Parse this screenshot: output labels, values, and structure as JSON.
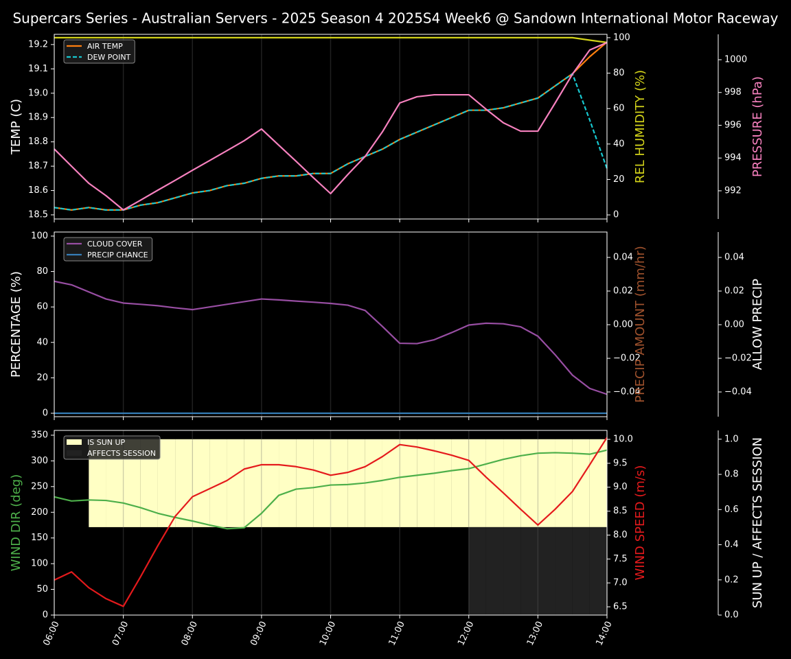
{
  "title": "Supercars Series - Australian Servers - 2025 Season 4 2025S4 Week6 @ Sandown International Motor Raceway",
  "chart_data": [
    {
      "type": "line",
      "legend": "upper left",
      "grid": true,
      "x": [
        "06:00",
        "06:15",
        "06:30",
        "06:45",
        "07:00",
        "07:15",
        "07:30",
        "07:45",
        "08:00",
        "08:15",
        "08:30",
        "08:45",
        "09:00",
        "09:15",
        "09:30",
        "09:45",
        "10:00",
        "10:15",
        "10:30",
        "10:45",
        "11:00",
        "11:15",
        "11:30",
        "11:45",
        "12:00",
        "12:15",
        "12:30",
        "12:45",
        "13:00",
        "13:15",
        "13:30",
        "13:45",
        "14:00"
      ],
      "xlim": [
        "06:00",
        "14:00"
      ],
      "xticks": [
        "06:00",
        "07:00",
        "08:00",
        "09:00",
        "10:00",
        "11:00",
        "12:00",
        "13:00",
        "14:00"
      ],
      "ylabel": "TEMP (C)",
      "ylabel_color": "#ffffff",
      "ylim": [
        18.483,
        19.242
      ],
      "yticks": [
        18.5,
        18.6,
        18.7,
        18.8,
        18.9,
        {
          "value": 19,
          "label": "19.0"
        },
        19.1,
        19.2
      ],
      "y2label": "REL HUMIDITY (%)",
      "y2label_color": "#d4d41a",
      "y2lim": [
        -2.3,
        101.9
      ],
      "y2ticks": [
        0,
        20,
        40,
        60,
        80,
        100
      ],
      "y3label": "PRESSURE (hPa)",
      "y3label_color": "#f781bf",
      "y3lim": [
        990.28,
        1001.55
      ],
      "y3ticks": [
        992,
        994,
        996,
        998,
        1000
      ],
      "series": [
        {
          "name": "AIR TEMP",
          "color": "#ff7f0e",
          "style": "line",
          "axis": "y",
          "legend": true,
          "values": [
            18.53,
            18.52,
            18.53,
            18.52,
            18.52,
            18.54,
            18.55,
            18.57,
            18.59,
            18.6,
            18.62,
            18.63,
            18.65,
            18.66,
            18.66,
            18.67,
            18.67,
            18.71,
            18.74,
            18.77,
            18.81,
            18.84,
            18.87,
            18.9,
            18.93,
            18.93,
            18.94,
            18.96,
            18.98,
            19.03,
            19.08,
            19.15,
            19.21
          ]
        },
        {
          "name": "DEW POINT",
          "color": "#17c8d0",
          "style": "dashed",
          "axis": "y",
          "legend": true,
          "values": [
            18.53,
            18.52,
            18.53,
            18.52,
            18.52,
            18.54,
            18.55,
            18.57,
            18.59,
            18.6,
            18.62,
            18.63,
            18.65,
            18.66,
            18.66,
            18.67,
            18.67,
            18.71,
            18.74,
            18.77,
            18.81,
            18.84,
            18.87,
            18.9,
            18.93,
            18.93,
            18.94,
            18.96,
            18.98,
            19.03,
            19.08,
            18.89,
            18.69
          ]
        },
        {
          "color": "#d4d41a",
          "style": "line",
          "axis": "y2",
          "legend": false,
          "values": [
            100,
            100,
            100,
            100,
            100,
            100,
            100,
            100,
            100,
            100,
            100,
            100,
            100,
            100,
            100,
            100,
            100,
            100,
            100,
            100,
            100,
            100,
            100,
            100,
            100,
            100,
            100,
            100,
            100,
            100,
            100,
            98.6,
            97.3
          ]
        },
        {
          "color": "#f781bf",
          "style": "line",
          "axis": "y3",
          "legend": false,
          "values": [
            994.55,
            993.5,
            992.46,
            991.7,
            990.83,
            991.43,
            992.04,
            992.64,
            993.25,
            993.85,
            994.45,
            995.06,
            995.77,
            994.78,
            993.8,
            992.8,
            991.83,
            993.0,
            994.1,
            995.6,
            997.36,
            997.74,
            997.86,
            997.86,
            997.86,
            996.98,
            996.15,
            995.64,
            995.64,
            997.36,
            999.12,
            1000.59,
            1001.05
          ]
        }
      ]
    },
    {
      "type": "line",
      "legend": "upper left",
      "grid": true,
      "x": [
        "06:00",
        "06:15",
        "06:30",
        "06:45",
        "07:00",
        "07:15",
        "07:30",
        "07:45",
        "08:00",
        "08:15",
        "08:30",
        "08:45",
        "09:00",
        "09:15",
        "09:30",
        "09:45",
        "10:00",
        "10:15",
        "10:30",
        "10:45",
        "11:00",
        "11:15",
        "11:30",
        "11:45",
        "12:00",
        "12:15",
        "12:30",
        "12:45",
        "13:00",
        "13:15",
        "13:30",
        "13:45",
        "14:00"
      ],
      "xlim": [
        "06:00",
        "14:00"
      ],
      "xticks": [
        "06:00",
        "07:00",
        "08:00",
        "09:00",
        "10:00",
        "11:00",
        "12:00",
        "13:00",
        "14:00"
      ],
      "ylabel": "PERCENTAGE (%)",
      "ylabel_color": "#ffffff",
      "ylim": [
        -1.94,
        102.3
      ],
      "yticks": [
        0,
        20,
        40,
        60,
        80,
        100
      ],
      "y2label": "PRECIP AMOUNT (mm/hr)",
      "y2label_color": "#a0522d",
      "y2lim": [
        -0.0547,
        0.0551
      ],
      "y2ticks": [
        {
          "value": -0.04,
          "label": "−0.04"
        },
        {
          "value": -0.02,
          "label": "−0.02"
        },
        {
          "value": 0,
          "label": "0.00"
        },
        0.02,
        0.04
      ],
      "y3label": "ALLOW PRECIP",
      "y3label_color": "#ffffff",
      "y3lim": [
        -0.0547,
        0.0551
      ],
      "y3ticks": [
        {
          "value": -0.04,
          "label": "−0.04"
        },
        {
          "value": -0.02,
          "label": "−0.02"
        },
        {
          "value": 0,
          "label": "0.00"
        },
        0.02,
        0.04
      ],
      "series": [
        {
          "name": "CLOUD COVER",
          "color": "#984ea3",
          "style": "line",
          "axis": "y",
          "legend": true,
          "values": [
            74.5,
            72.5,
            68.5,
            64.5,
            62.2,
            61.5,
            60.7,
            59.5,
            58.5,
            60,
            61.5,
            63,
            64.5,
            64,
            63.3,
            62.7,
            62,
            61,
            58,
            49,
            39.5,
            39.3,
            41.5,
            45.5,
            49.8,
            50.8,
            50.5,
            48.8,
            43.5,
            33,
            21.5,
            14,
            10.7
          ]
        },
        {
          "name": "PRECIP CHANCE",
          "color": "#377eb8",
          "style": "line",
          "axis": "y",
          "legend": true,
          "values": [
            0,
            0,
            0,
            0,
            0,
            0,
            0,
            0,
            0,
            0,
            0,
            0,
            0,
            0,
            0,
            0,
            0,
            0,
            0,
            0,
            0,
            0,
            0,
            0,
            0,
            0,
            0,
            0,
            0,
            0,
            0,
            0,
            0
          ]
        }
      ]
    },
    {
      "type": "line",
      "legend": "upper left",
      "grid": true,
      "x": [
        "06:00",
        "06:15",
        "06:30",
        "06:45",
        "07:00",
        "07:15",
        "07:30",
        "07:45",
        "08:00",
        "08:15",
        "08:30",
        "08:45",
        "09:00",
        "09:15",
        "09:30",
        "09:45",
        "10:00",
        "10:15",
        "10:30",
        "10:45",
        "11:00",
        "11:15",
        "11:30",
        "11:45",
        "12:00",
        "12:15",
        "12:30",
        "12:45",
        "13:00",
        "13:15",
        "13:30",
        "13:45",
        "14:00"
      ],
      "xlim": [
        "06:00",
        "14:00"
      ],
      "xticks": [
        "06:00",
        "07:00",
        "08:00",
        "09:00",
        "10:00",
        "11:00",
        "12:00",
        "13:00",
        "14:00"
      ],
      "ylabel": "WIND DIR (deg)",
      "ylabel_color": "#4daf4a",
      "ylim": [
        0,
        359.3
      ],
      "yticks": [
        0,
        50,
        100,
        150,
        200,
        250,
        300,
        350
      ],
      "y2label": "WIND SPEED (m/s)",
      "y2label_color": "#e41a1c",
      "y2lim": [
        6.328,
        10.187
      ],
      "y2ticks": [
        6.5,
        {
          "value": 7,
          "label": "7.0"
        },
        7.5,
        {
          "value": 8,
          "label": "8.0"
        },
        8.5,
        {
          "value": 9,
          "label": "9.0"
        },
        9.5,
        {
          "value": 10,
          "label": "10.0"
        }
      ],
      "y3label": "SUN UP / AFFECTS SESSION",
      "y3label_color": "#ffffff",
      "y3lim": [
        0,
        1.05
      ],
      "y3ticks": [
        {
          "value": 0,
          "label": "0.0"
        },
        0.2,
        0.4,
        0.6,
        0.8,
        {
          "value": 1,
          "label": "1.0"
        }
      ],
      "series": [
        {
          "name": "IS SUN UP",
          "color": "#ffffc4",
          "style": "upper-band",
          "axis": "y3",
          "legend": true,
          "values": [
            0,
            0,
            1,
            1,
            1,
            1,
            1,
            1,
            1,
            1,
            1,
            1,
            1,
            1,
            1,
            1,
            1,
            1,
            1,
            1,
            1,
            1,
            1,
            1,
            1,
            1,
            1,
            1,
            1,
            1,
            1,
            1,
            1
          ]
        },
        {
          "name": "AFFECTS SESSION",
          "color": "#222222",
          "style": "band",
          "axis": "y3",
          "legend": true,
          "values": [
            0,
            0,
            0,
            0,
            0,
            0,
            0,
            0,
            0,
            0,
            0,
            0,
            0,
            0,
            0,
            0,
            0,
            0,
            0,
            0,
            0,
            0,
            0,
            0,
            0.5,
            0.5,
            0.5,
            0.5,
            0.5,
            0.5,
            0.5,
            0.5,
            0.5
          ]
        },
        {
          "color": "#4daf4a",
          "style": "line",
          "axis": "y",
          "legend": false,
          "values": [
            230,
            222,
            224,
            223,
            218,
            209,
            198,
            190,
            183,
            175,
            168,
            170,
            198,
            233,
            245,
            248,
            253,
            254,
            257,
            262,
            268,
            272,
            276,
            281,
            285,
            294,
            303,
            310,
            315,
            316,
            315,
            313,
            321
          ]
        },
        {
          "color": "#e41a1c",
          "style": "line",
          "axis": "y2",
          "legend": false,
          "values": [
            7.06,
            7.23,
            6.9,
            6.67,
            6.51,
            7.13,
            7.78,
            8.39,
            8.8,
            8.97,
            9.14,
            9.38,
            9.47,
            9.47,
            9.43,
            9.36,
            9.25,
            9.31,
            9.43,
            9.64,
            9.89,
            9.84,
            9.76,
            9.67,
            9.56,
            9.21,
            8.88,
            8.54,
            8.21,
            8.54,
            8.91,
            9.47,
            10.04
          ]
        }
      ]
    }
  ]
}
